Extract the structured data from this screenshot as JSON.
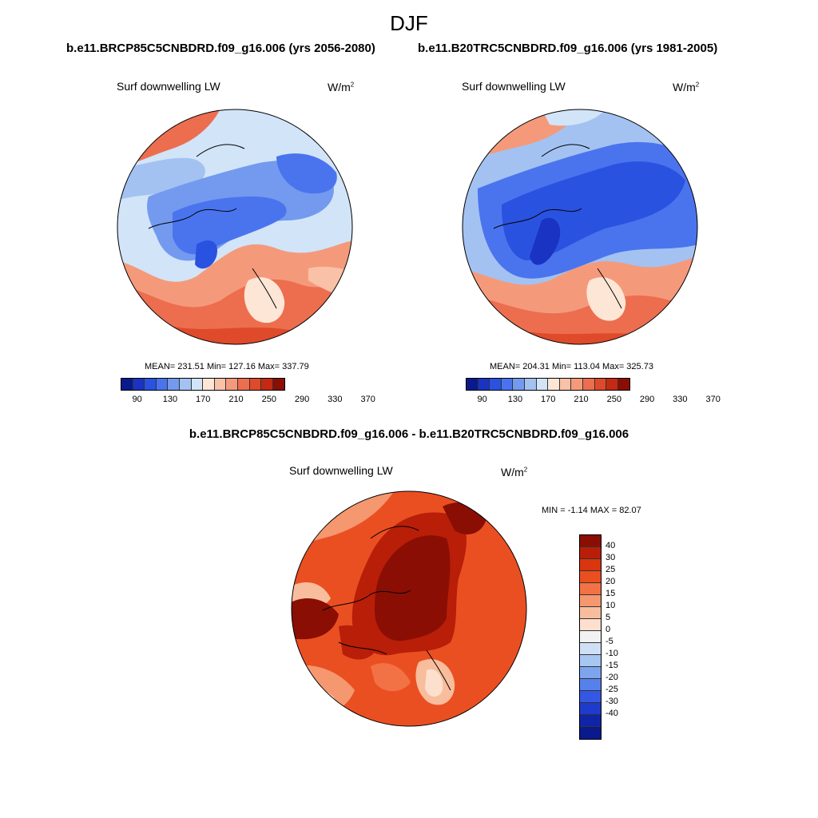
{
  "season": "DJF",
  "panels": {
    "left": {
      "title": "b.e11.BRCP85C5CNBDRD.f09_g16.006 (yrs 2056-2080)",
      "variable": "Surf downwelling LW",
      "units_base": "W/m",
      "units_exp": "2",
      "stats": "MEAN= 231.51  Min= 127.16  Max= 337.79",
      "mean": 231.51,
      "min": 127.16,
      "max": 337.79
    },
    "right": {
      "title": "b.e11.B20TRC5CNBDRD.f09_g16.006 (yrs 1981-2005)",
      "variable": "Surf downwelling LW",
      "units_base": "W/m",
      "units_exp": "2",
      "stats": "MEAN= 204.31  Min= 113.04  Max= 325.73",
      "mean": 204.31,
      "min": 113.04,
      "max": 325.73
    },
    "diff": {
      "title": "b.e11.BRCP85C5CNBDRD.f09_g16.006 - b.e11.B20TRC5CNBDRD.f09_g16.006",
      "variable": "Surf downwelling LW",
      "units_base": "W/m",
      "units_exp": "2",
      "stats": "MIN =  -1.14 MAX =  82.07",
      "min": -1.14,
      "max": 82.07
    }
  },
  "abs_colorbar": {
    "colors": [
      "#0a1a8c",
      "#1a33c2",
      "#2a52e0",
      "#4a74ee",
      "#739aee",
      "#a3c2f2",
      "#d2e4f8",
      "#fde6d6",
      "#f9c1a8",
      "#f49a7b",
      "#ec6e4f",
      "#de4a2a",
      "#c32a12",
      "#8a0e04"
    ],
    "tick_labels": [
      "90",
      "130",
      "170",
      "210",
      "250",
      "290",
      "330",
      "370"
    ]
  },
  "diff_colorbar": {
    "colors": [
      "#8a0e04",
      "#b81e08",
      "#d8360f",
      "#ea4f22",
      "#f27246",
      "#f5976f",
      "#f8bd9d",
      "#fce0cd",
      "#f2f2f2",
      "#cfe0f6",
      "#a8c6f2",
      "#7ea4ee",
      "#5680ec",
      "#3458e4",
      "#1f3bcc",
      "#1024a8",
      "#0a1a8c"
    ],
    "tick_labels": [
      "40",
      "30",
      "25",
      "20",
      "15",
      "10",
      "5",
      "0",
      "-5",
      "-10",
      "-15",
      "-20",
      "-25",
      "-30",
      "-40"
    ]
  }
}
